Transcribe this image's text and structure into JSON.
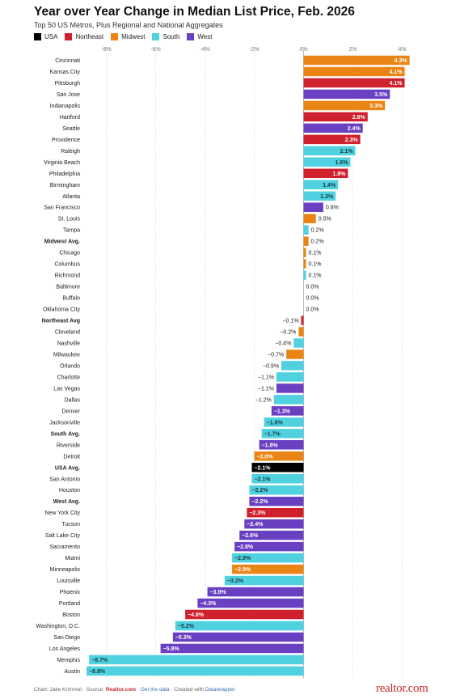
{
  "chart_data": {
    "type": "bar",
    "orientation": "horizontal",
    "title": "Year over Year Change in Median List Price, Feb. 2026",
    "subtitle": "Top 50 US Metros, Plus Regional and National Aggregates",
    "xlim": [
      -8.6,
      4.4
    ],
    "ticks": [
      {
        "value": -8,
        "label": "-8%"
      },
      {
        "value": -6,
        "label": "-6%"
      },
      {
        "value": -4,
        "label": "-4%"
      },
      {
        "value": -2,
        "label": "-2%"
      },
      {
        "value": 0,
        "label": "0%"
      },
      {
        "value": 2,
        "label": "2%"
      },
      {
        "value": 4,
        "label": "4%"
      }
    ],
    "legend": [
      {
        "key": "usa",
        "label": "USA",
        "color": "#000000"
      },
      {
        "key": "northeast",
        "label": "Northeast",
        "color": "#d0202e"
      },
      {
        "key": "midwest",
        "label": "Midwest",
        "color": "#ea8515"
      },
      {
        "key": "south",
        "label": "South",
        "color": "#4fd1e0"
      },
      {
        "key": "west",
        "label": "West",
        "color": "#6a40c2"
      }
    ],
    "rows": [
      {
        "name": "Cincinnati",
        "value": 4.3,
        "label": "4.3%",
        "region": "midwest",
        "bold": false
      },
      {
        "name": "Kansas City",
        "value": 4.1,
        "label": "4.1%",
        "region": "midwest",
        "bold": false
      },
      {
        "name": "Pittsburgh",
        "value": 4.1,
        "label": "4.1%",
        "region": "northeast",
        "bold": false
      },
      {
        "name": "San Jose",
        "value": 3.5,
        "label": "3.5%",
        "region": "west",
        "bold": false
      },
      {
        "name": "Indianapolis",
        "value": 3.3,
        "label": "3.3%",
        "region": "midwest",
        "bold": false
      },
      {
        "name": "Hartford",
        "value": 2.6,
        "label": "2.6%",
        "region": "northeast",
        "bold": false
      },
      {
        "name": "Seattle",
        "value": 2.4,
        "label": "2.4%",
        "region": "west",
        "bold": false
      },
      {
        "name": "Providence",
        "value": 2.3,
        "label": "2.3%",
        "region": "northeast",
        "bold": false
      },
      {
        "name": "Raleigh",
        "value": 2.1,
        "label": "2.1%",
        "region": "south",
        "bold": false
      },
      {
        "name": "Virginia Beach",
        "value": 1.9,
        "label": "1.9%",
        "region": "south",
        "bold": false
      },
      {
        "name": "Philadelphia",
        "value": 1.8,
        "label": "1.8%",
        "region": "northeast",
        "bold": false
      },
      {
        "name": "Birmingham",
        "value": 1.4,
        "label": "1.4%",
        "region": "south",
        "bold": false
      },
      {
        "name": "Atlanta",
        "value": 1.3,
        "label": "1.3%",
        "region": "south",
        "bold": false
      },
      {
        "name": "San Francisco",
        "value": 0.8,
        "label": "0.8%",
        "region": "west",
        "bold": false
      },
      {
        "name": "St. Louis",
        "value": 0.5,
        "label": "0.5%",
        "region": "midwest",
        "bold": false
      },
      {
        "name": "Tampa",
        "value": 0.2,
        "label": "0.2%",
        "region": "south",
        "bold": false
      },
      {
        "name": "Midwest Avg.",
        "value": 0.2,
        "label": "0.2%",
        "region": "midwest",
        "bold": true
      },
      {
        "name": "Chicago",
        "value": 0.1,
        "label": "0.1%",
        "region": "midwest",
        "bold": false
      },
      {
        "name": "Columbus",
        "value": 0.1,
        "label": "0.1%",
        "region": "midwest",
        "bold": false
      },
      {
        "name": "Richmond",
        "value": 0.1,
        "label": "0.1%",
        "region": "south",
        "bold": false
      },
      {
        "name": "Baltimore",
        "value": 0.0,
        "label": "0.0%",
        "region": "south",
        "bold": false
      },
      {
        "name": "Buffalo",
        "value": 0.0,
        "label": "0.0%",
        "region": "northeast",
        "bold": false
      },
      {
        "name": "Oklahoma City",
        "value": 0.0,
        "label": "0.0%",
        "region": "south",
        "bold": false
      },
      {
        "name": "Northeast Avg",
        "value": -0.1,
        "label": "−0.1%",
        "region": "northeast",
        "bold": true
      },
      {
        "name": "Cleveland",
        "value": -0.2,
        "label": "−0.2%",
        "region": "midwest",
        "bold": false
      },
      {
        "name": "Nashville",
        "value": -0.4,
        "label": "−0.4%",
        "region": "south",
        "bold": false
      },
      {
        "name": "Milwaukee",
        "value": -0.7,
        "label": "−0.7%",
        "region": "midwest",
        "bold": false
      },
      {
        "name": "Orlando",
        "value": -0.9,
        "label": "−0.9%",
        "region": "south",
        "bold": false
      },
      {
        "name": "Charlotte",
        "value": -1.1,
        "label": "−1.1%",
        "region": "south",
        "bold": false
      },
      {
        "name": "Las Vegas",
        "value": -1.1,
        "label": "−1.1%",
        "region": "west",
        "bold": false
      },
      {
        "name": "Dallas",
        "value": -1.2,
        "label": "−1.2%",
        "region": "south",
        "bold": false
      },
      {
        "name": "Denver",
        "value": -1.3,
        "label": "−1.3%",
        "region": "west",
        "bold": false
      },
      {
        "name": "Jacksonville",
        "value": -1.6,
        "label": "−1.6%",
        "region": "south",
        "bold": false
      },
      {
        "name": "South Avg.",
        "value": -1.7,
        "label": "−1.7%",
        "region": "south",
        "bold": true
      },
      {
        "name": "Riverside",
        "value": -1.8,
        "label": "−1.8%",
        "region": "west",
        "bold": false
      },
      {
        "name": "Detroit",
        "value": -2.0,
        "label": "−2.0%",
        "region": "midwest",
        "bold": false
      },
      {
        "name": "USA Avg.",
        "value": -2.1,
        "label": "−2.1%",
        "region": "usa",
        "bold": true
      },
      {
        "name": "San Antonio",
        "value": -2.1,
        "label": "−2.1%",
        "region": "south",
        "bold": false
      },
      {
        "name": "Houston",
        "value": -2.2,
        "label": "−2.2%",
        "region": "south",
        "bold": false
      },
      {
        "name": "West Avg.",
        "value": -2.2,
        "label": "−2.2%",
        "region": "west",
        "bold": true
      },
      {
        "name": "New York City",
        "value": -2.3,
        "label": "−2.3%",
        "region": "northeast",
        "bold": false
      },
      {
        "name": "Tucson",
        "value": -2.4,
        "label": "−2.4%",
        "region": "west",
        "bold": false
      },
      {
        "name": "Salt Lake City",
        "value": -2.6,
        "label": "−2.6%",
        "region": "west",
        "bold": false
      },
      {
        "name": "Sacramento",
        "value": -2.8,
        "label": "−2.8%",
        "region": "west",
        "bold": false
      },
      {
        "name": "Miami",
        "value": -2.9,
        "label": "−2.9%",
        "region": "south",
        "bold": false
      },
      {
        "name": "Minneapolis",
        "value": -2.9,
        "label": "−2.9%",
        "region": "midwest",
        "bold": false
      },
      {
        "name": "Louisville",
        "value": -3.2,
        "label": "−3.2%",
        "region": "south",
        "bold": false
      },
      {
        "name": "Phoenix",
        "value": -3.9,
        "label": "−3.9%",
        "region": "west",
        "bold": false
      },
      {
        "name": "Portland",
        "value": -4.3,
        "label": "−4.3%",
        "region": "west",
        "bold": false
      },
      {
        "name": "Boston",
        "value": -4.8,
        "label": "−4.8%",
        "region": "northeast",
        "bold": false
      },
      {
        "name": "Washington, D.C.",
        "value": -5.2,
        "label": "−5.2%",
        "region": "south",
        "bold": false
      },
      {
        "name": "San Diego",
        "value": -5.3,
        "label": "−5.3%",
        "region": "west",
        "bold": false
      },
      {
        "name": "Los Angeles",
        "value": -5.8,
        "label": "−5.8%",
        "region": "west",
        "bold": false
      },
      {
        "name": "Memphis",
        "value": -8.7,
        "label": "−8.7%",
        "region": "south",
        "bold": false
      },
      {
        "name": "Austin",
        "value": -8.8,
        "label": "−8.8%",
        "region": "south",
        "bold": false
      }
    ]
  },
  "footer": {
    "text1": "Chart: Jake Krimmel · Source: ",
    "source": "Realtor.com",
    "sep1": " · ",
    "get_data": "Get the data",
    "text2": " · Created with ",
    "tool": "Datawrapper"
  },
  "logo": "realtor.com"
}
